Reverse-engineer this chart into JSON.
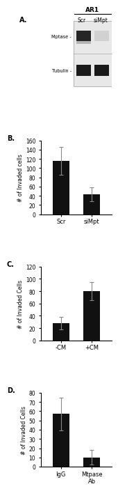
{
  "panel_B": {
    "categories": [
      "Scr",
      "siMpt"
    ],
    "values": [
      115,
      43
    ],
    "errors": [
      30,
      15
    ],
    "ylabel": "# of Invaded cells",
    "ylim": [
      0,
      160
    ],
    "yticks": [
      0,
      20,
      40,
      60,
      80,
      100,
      120,
      140,
      160
    ],
    "label": "B."
  },
  "panel_C": {
    "categories": [
      "-CM",
      "+CM"
    ],
    "values": [
      28,
      80
    ],
    "errors": [
      10,
      15
    ],
    "ylabel": "# of Invaded Cells",
    "ylim": [
      0,
      120
    ],
    "yticks": [
      0,
      20,
      40,
      60,
      80,
      100,
      120
    ],
    "label": "C."
  },
  "panel_D": {
    "categories": [
      "IgG",
      "Mtpase\nAb"
    ],
    "values": [
      57,
      10
    ],
    "errors": [
      18,
      8
    ],
    "ylabel": "# of Invaded Cells",
    "ylim": [
      0,
      80
    ],
    "yticks": [
      0,
      10,
      20,
      30,
      40,
      50,
      60,
      70,
      80
    ],
    "label": "D."
  },
  "bar_color": "#111111",
  "error_color": "#888888",
  "background_color": "#ffffff",
  "bar_width": 0.55,
  "panel_A_label": "A.",
  "panel_A_title": "AR1",
  "panel_A_rows": [
    "Mptase -",
    "Tubulin -"
  ],
  "panel_A_cols": [
    "Scr",
    "siMpt"
  ]
}
